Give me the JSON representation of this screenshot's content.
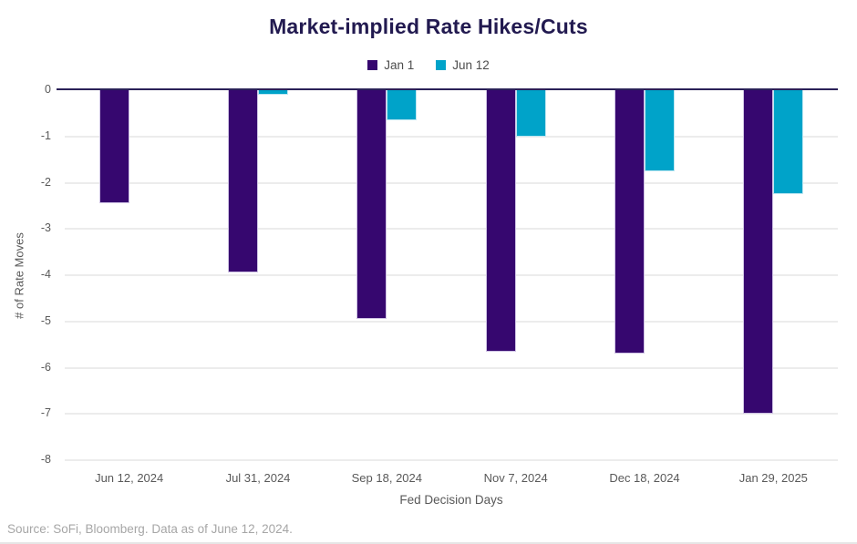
{
  "footer": "Source: SoFi, Bloomberg. Data as of June 12, 2024.",
  "colors": {
    "title_text": "#221a50",
    "axis_text": "#595959",
    "footer_text": "#a6a6a6",
    "zero_line": "#2a2058",
    "gridline": "#ececec",
    "jan1_bar": "#36076f",
    "jun12_bar": "#00a3c9"
  },
  "chart_data": {
    "type": "bar",
    "title": "Market-implied Rate Hikes/Cuts",
    "categories": [
      "Jun 12, 2024",
      "Jul 31, 2024",
      "Sep 18, 2024",
      "Nov 7, 2024",
      "Dec 18, 2024",
      "Jan 29, 2025"
    ],
    "series": [
      {
        "name": "Jan 1",
        "color": "#36076f",
        "values": [
          -2.45,
          -3.95,
          -4.95,
          -5.65,
          -5.7,
          -7.0
        ]
      },
      {
        "name": "Jun 12",
        "color": "#00a3c9",
        "values": [
          0,
          -0.1,
          -0.65,
          -1.0,
          -1.75,
          -2.25
        ]
      }
    ],
    "xlabel": "Fed Decision Days",
    "ylabel": "# of Rate Moves",
    "ylim": [
      -8,
      0
    ],
    "yticks": [
      0,
      -1,
      -2,
      -3,
      -4,
      -5,
      -6,
      -7,
      -8
    ],
    "grid": true,
    "legend_position": "top"
  }
}
